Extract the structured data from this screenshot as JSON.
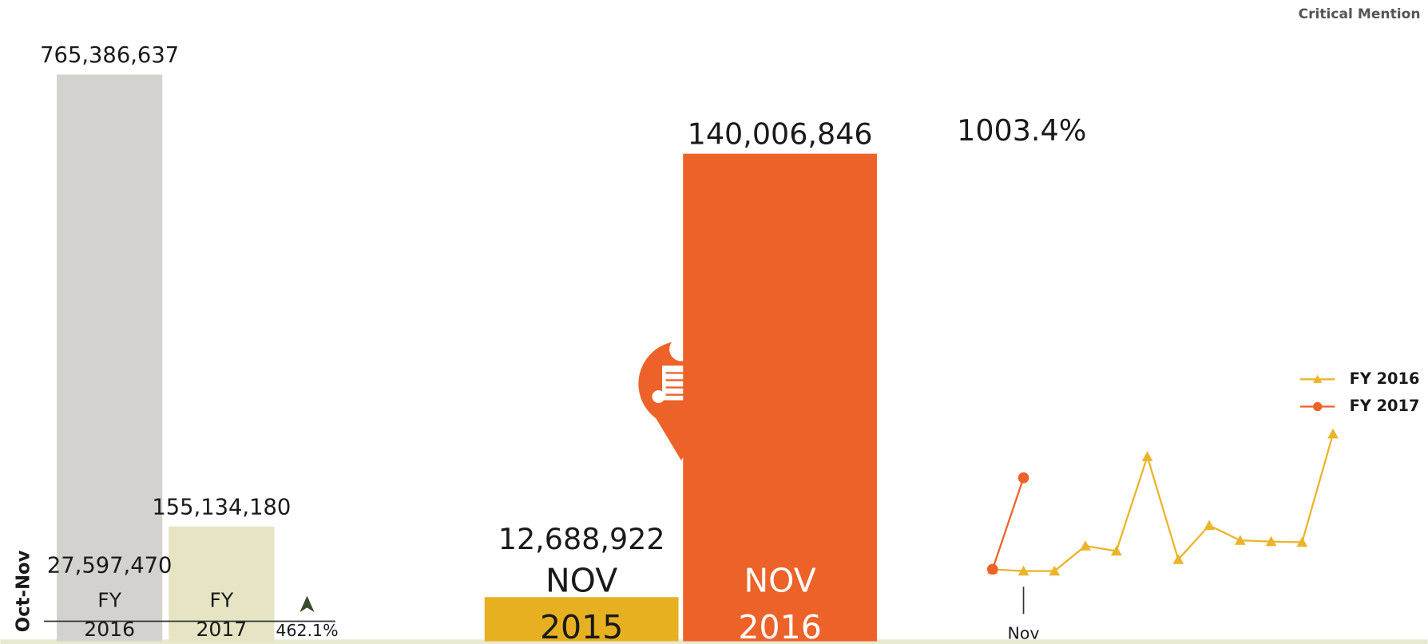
{
  "brand": "Critical Mention",
  "chart_data": [
    {
      "type": "bar",
      "ylabel": "Oct-Nov",
      "categories": [
        [
          "FY",
          "2016"
        ],
        [
          "FY",
          "2017"
        ]
      ],
      "values": [
        765386637,
        155134180
      ],
      "value_labels": [
        "765,386,637",
        "155,134,180"
      ],
      "colors": [
        "#d3d2ce",
        "#e6e4c3"
      ],
      "annotations": [
        "27,597,470",
        "462.1%"
      ]
    },
    {
      "type": "bar",
      "categories": [
        [
          "NOV",
          "2015"
        ],
        [
          "NOV",
          "2016"
        ]
      ],
      "values": [
        12688922,
        140006846
      ],
      "value_labels": [
        "12,688,922",
        "140,006,846"
      ],
      "colors": [
        "#e7b021",
        "#ed6229"
      ],
      "annotations": [
        "1003.4%"
      ]
    },
    {
      "type": "line",
      "categories": [
        null,
        "Nov",
        null,
        null,
        null,
        null,
        null,
        null,
        null,
        null,
        null,
        null
      ],
      "series": [
        {
          "name": "FY 2016",
          "color": "#ebb42a",
          "marker": "triangle",
          "values": [
            14908548,
            12688922,
            12700000,
            47000000,
            40000000,
            169000000,
            28500000,
            75000000,
            54600000,
            53000000,
            52000000,
            200000000
          ]
        },
        {
          "name": "FY 2017",
          "color": "#ed6229",
          "marker": "circle",
          "values": [
            15127334,
            140006846,
            null,
            null,
            null,
            null,
            null,
            null,
            null,
            null,
            null,
            null
          ]
        }
      ]
    }
  ]
}
